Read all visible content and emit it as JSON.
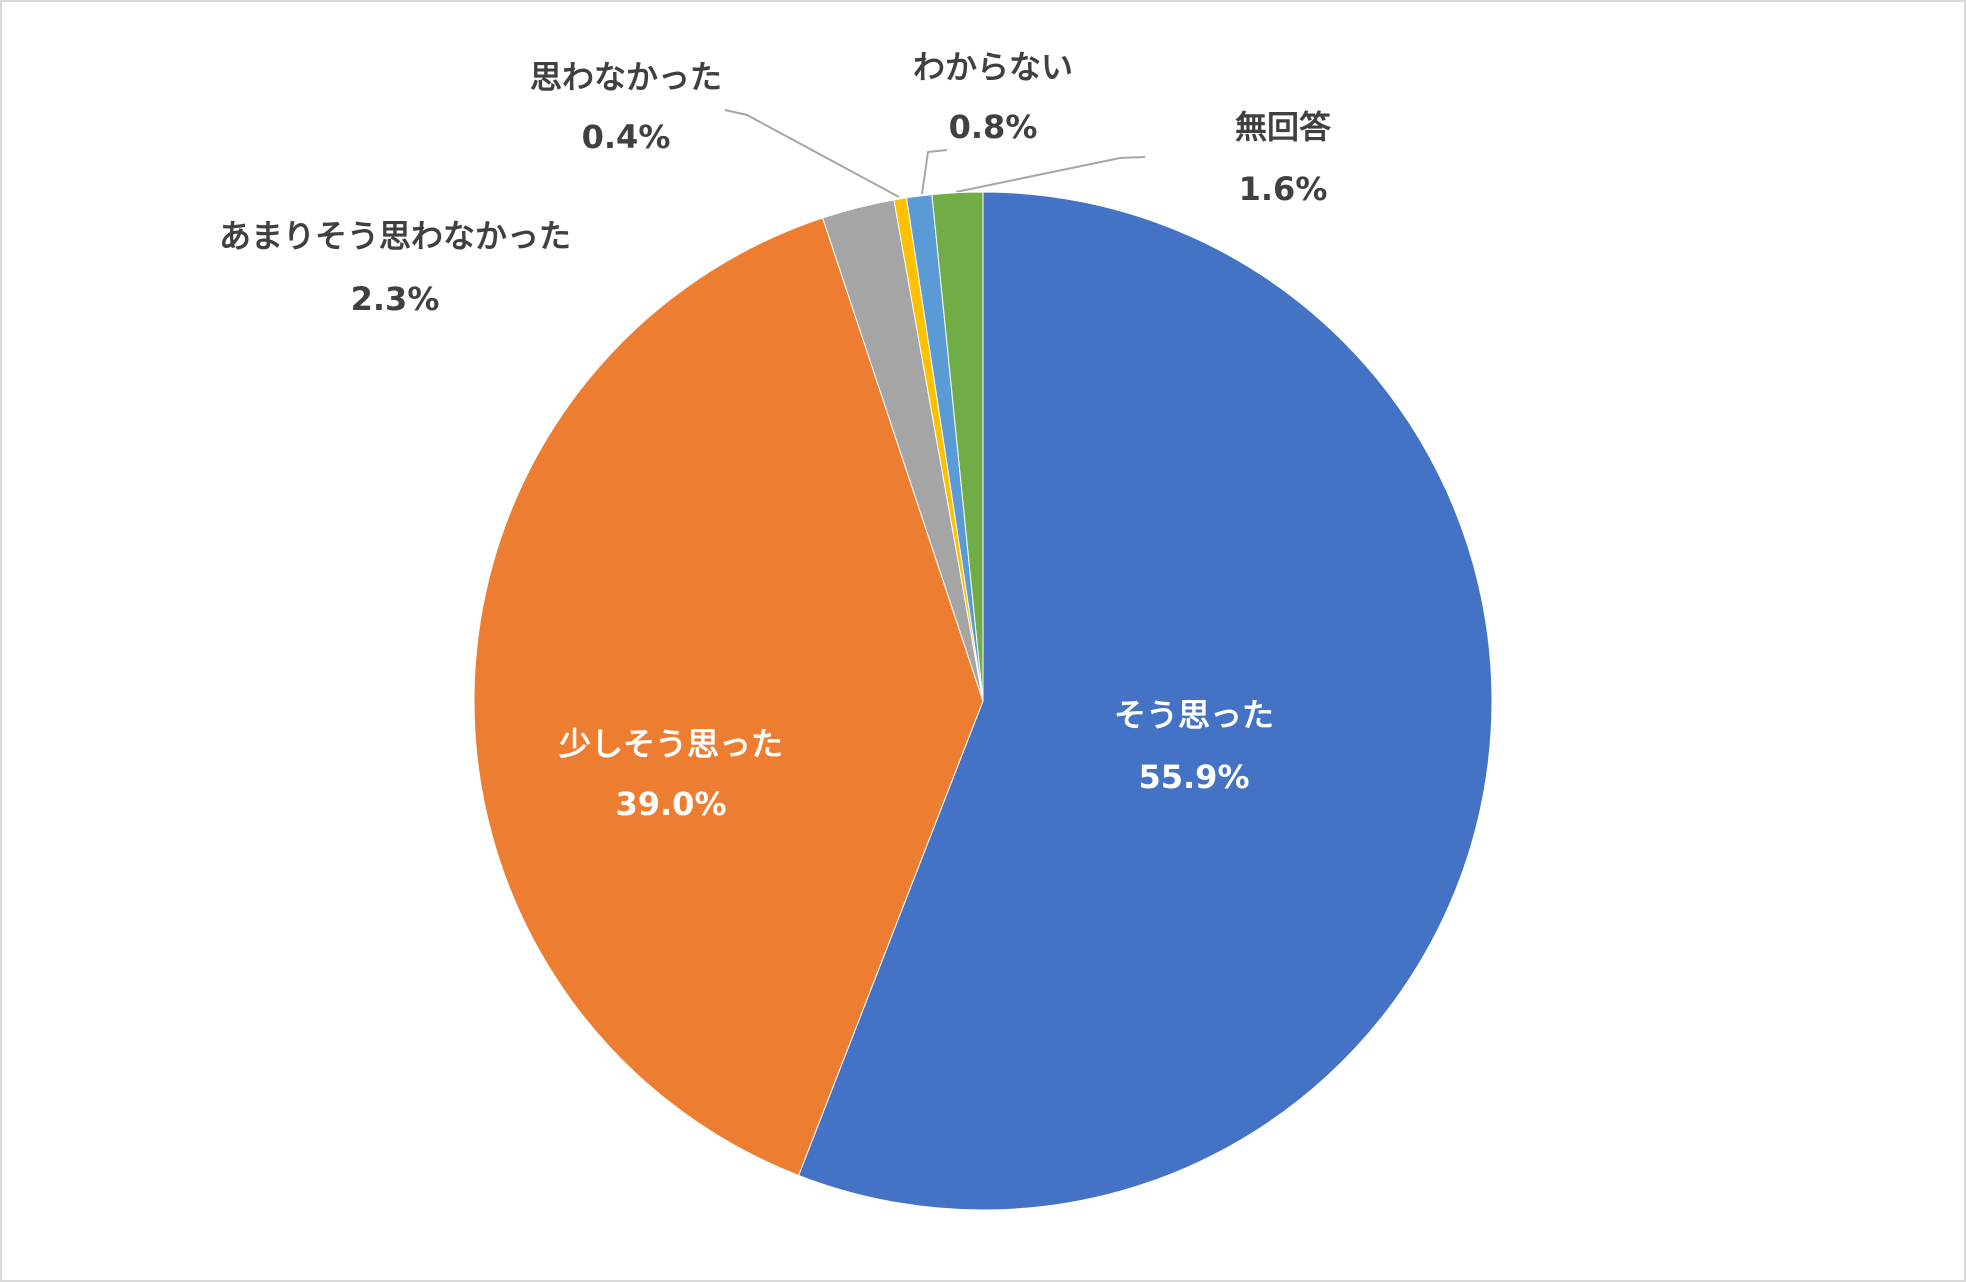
{
  "chart_data": {
    "type": "pie",
    "categories": [
      "そう思った",
      "少しそう思った",
      "あまりそう思わなかった",
      "思わなかった",
      "わからない",
      "無回答"
    ],
    "values": [
      55.9,
      39.0,
      2.3,
      0.4,
      0.8,
      1.6
    ],
    "value_labels": [
      "55.9%",
      "39.0%",
      "2.3%",
      "0.4%",
      "0.8%",
      "1.6%"
    ],
    "colors": [
      "#4472c4",
      "#ed7d31",
      "#a5a5a5",
      "#ffc000",
      "#5b9bd5",
      "#70ad47"
    ]
  }
}
